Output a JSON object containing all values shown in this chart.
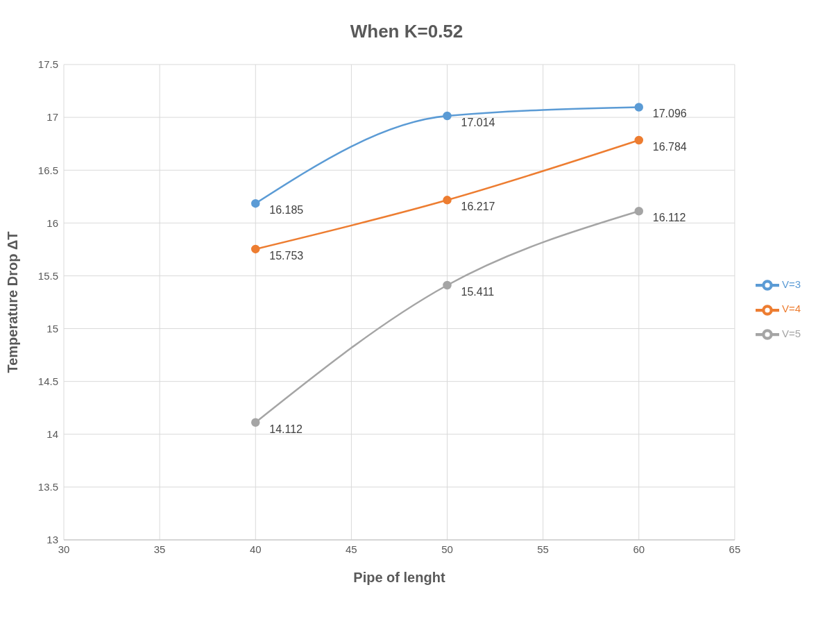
{
  "chart_data": {
    "type": "line",
    "title": "When K=0.52",
    "xlabel": "Pipe of lenght",
    "ylabel": "Temperature Drop ΔT",
    "x": [
      40,
      50,
      60
    ],
    "series": [
      {
        "name": "V=3",
        "color": "#5b9bd5",
        "values": [
          16.185,
          17.014,
          17.096
        ]
      },
      {
        "name": "V=4",
        "color": "#ed7d31",
        "values": [
          15.753,
          16.217,
          16.784
        ]
      },
      {
        "name": "V=5",
        "color": "#a5a5a5",
        "values": [
          14.112,
          15.411,
          16.112
        ]
      }
    ],
    "xlim": [
      30,
      65
    ],
    "xticks": [
      30,
      35,
      40,
      45,
      50,
      55,
      60,
      65
    ],
    "ylim": [
      13,
      17.5
    ],
    "yticks": [
      13,
      13.5,
      14,
      14.5,
      15,
      15.5,
      16,
      16.5,
      17,
      17.5
    ],
    "grid": true,
    "legend": "right",
    "marker": "circle",
    "line_style": "solid",
    "data_labels": true
  }
}
